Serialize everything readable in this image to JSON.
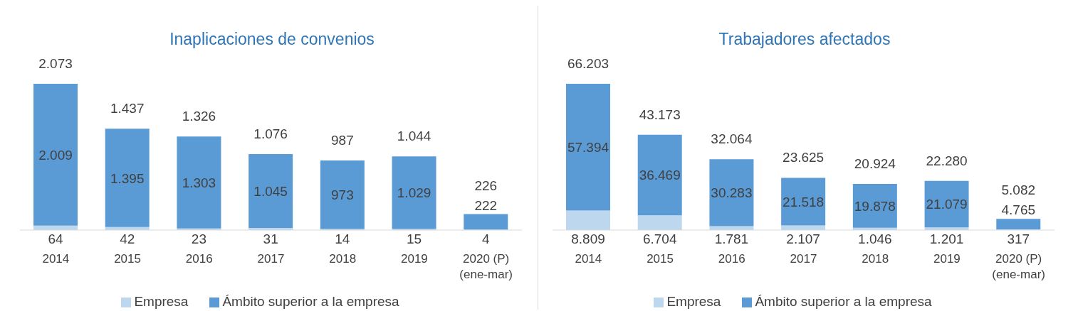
{
  "chart_data": [
    {
      "type": "bar",
      "title": "Inaplicaciones de convenios",
      "categories": [
        "2014",
        "2015",
        "2016",
        "2017",
        "2018",
        "2019",
        "2020 (P) (ene-mar)"
      ],
      "stacked": true,
      "legend": "bottom",
      "grid": false,
      "tick_labels": "x",
      "series": [
        {
          "name": "Empresa",
          "color": "#bdd7ee",
          "values": [
            64,
            42,
            23,
            31,
            14,
            15,
            4
          ],
          "value_labels": [
            "64",
            "42",
            "23",
            "31",
            "14",
            "15",
            "4"
          ]
        },
        {
          "name": "Ámbito superior a la empresa",
          "color": "#5b9bd5",
          "values": [
            2009,
            1395,
            1303,
            1045,
            973,
            1029,
            222
          ],
          "value_labels": [
            "2.009",
            "1.395",
            "1.303",
            "1.045",
            "973",
            "1.029",
            "222"
          ]
        }
      ],
      "totals": [
        "2.073",
        "1.437",
        "1.326",
        "1.076",
        "987",
        "1.044",
        "226"
      ]
    },
    {
      "type": "bar",
      "title": "Trabajadores afectados",
      "categories": [
        "2014",
        "2015",
        "2016",
        "2017",
        "2018",
        "2019",
        "2020 (P) (ene-mar)"
      ],
      "stacked": true,
      "legend": "bottom",
      "grid": false,
      "tick_labels": "x",
      "series": [
        {
          "name": "Empresa",
          "color": "#bdd7ee",
          "values": [
            8809,
            6704,
            1781,
            2107,
            1046,
            1201,
            317
          ],
          "value_labels": [
            "8.809",
            "6.704",
            "1.781",
            "2.107",
            "1.046",
            "1.201",
            "317"
          ]
        },
        {
          "name": "Ámbito superior a la empresa",
          "color": "#5b9bd5",
          "values": [
            57394,
            36469,
            30283,
            21518,
            19878,
            21079,
            4765
          ],
          "value_labels": [
            "57.394",
            "36.469",
            "30.283",
            "21.518",
            "19.878",
            "21.079",
            "4.765"
          ]
        }
      ],
      "totals": [
        "66.203",
        "43.173",
        "32.064",
        "23.625",
        "20.924",
        "22.280",
        "5.082"
      ]
    }
  ]
}
